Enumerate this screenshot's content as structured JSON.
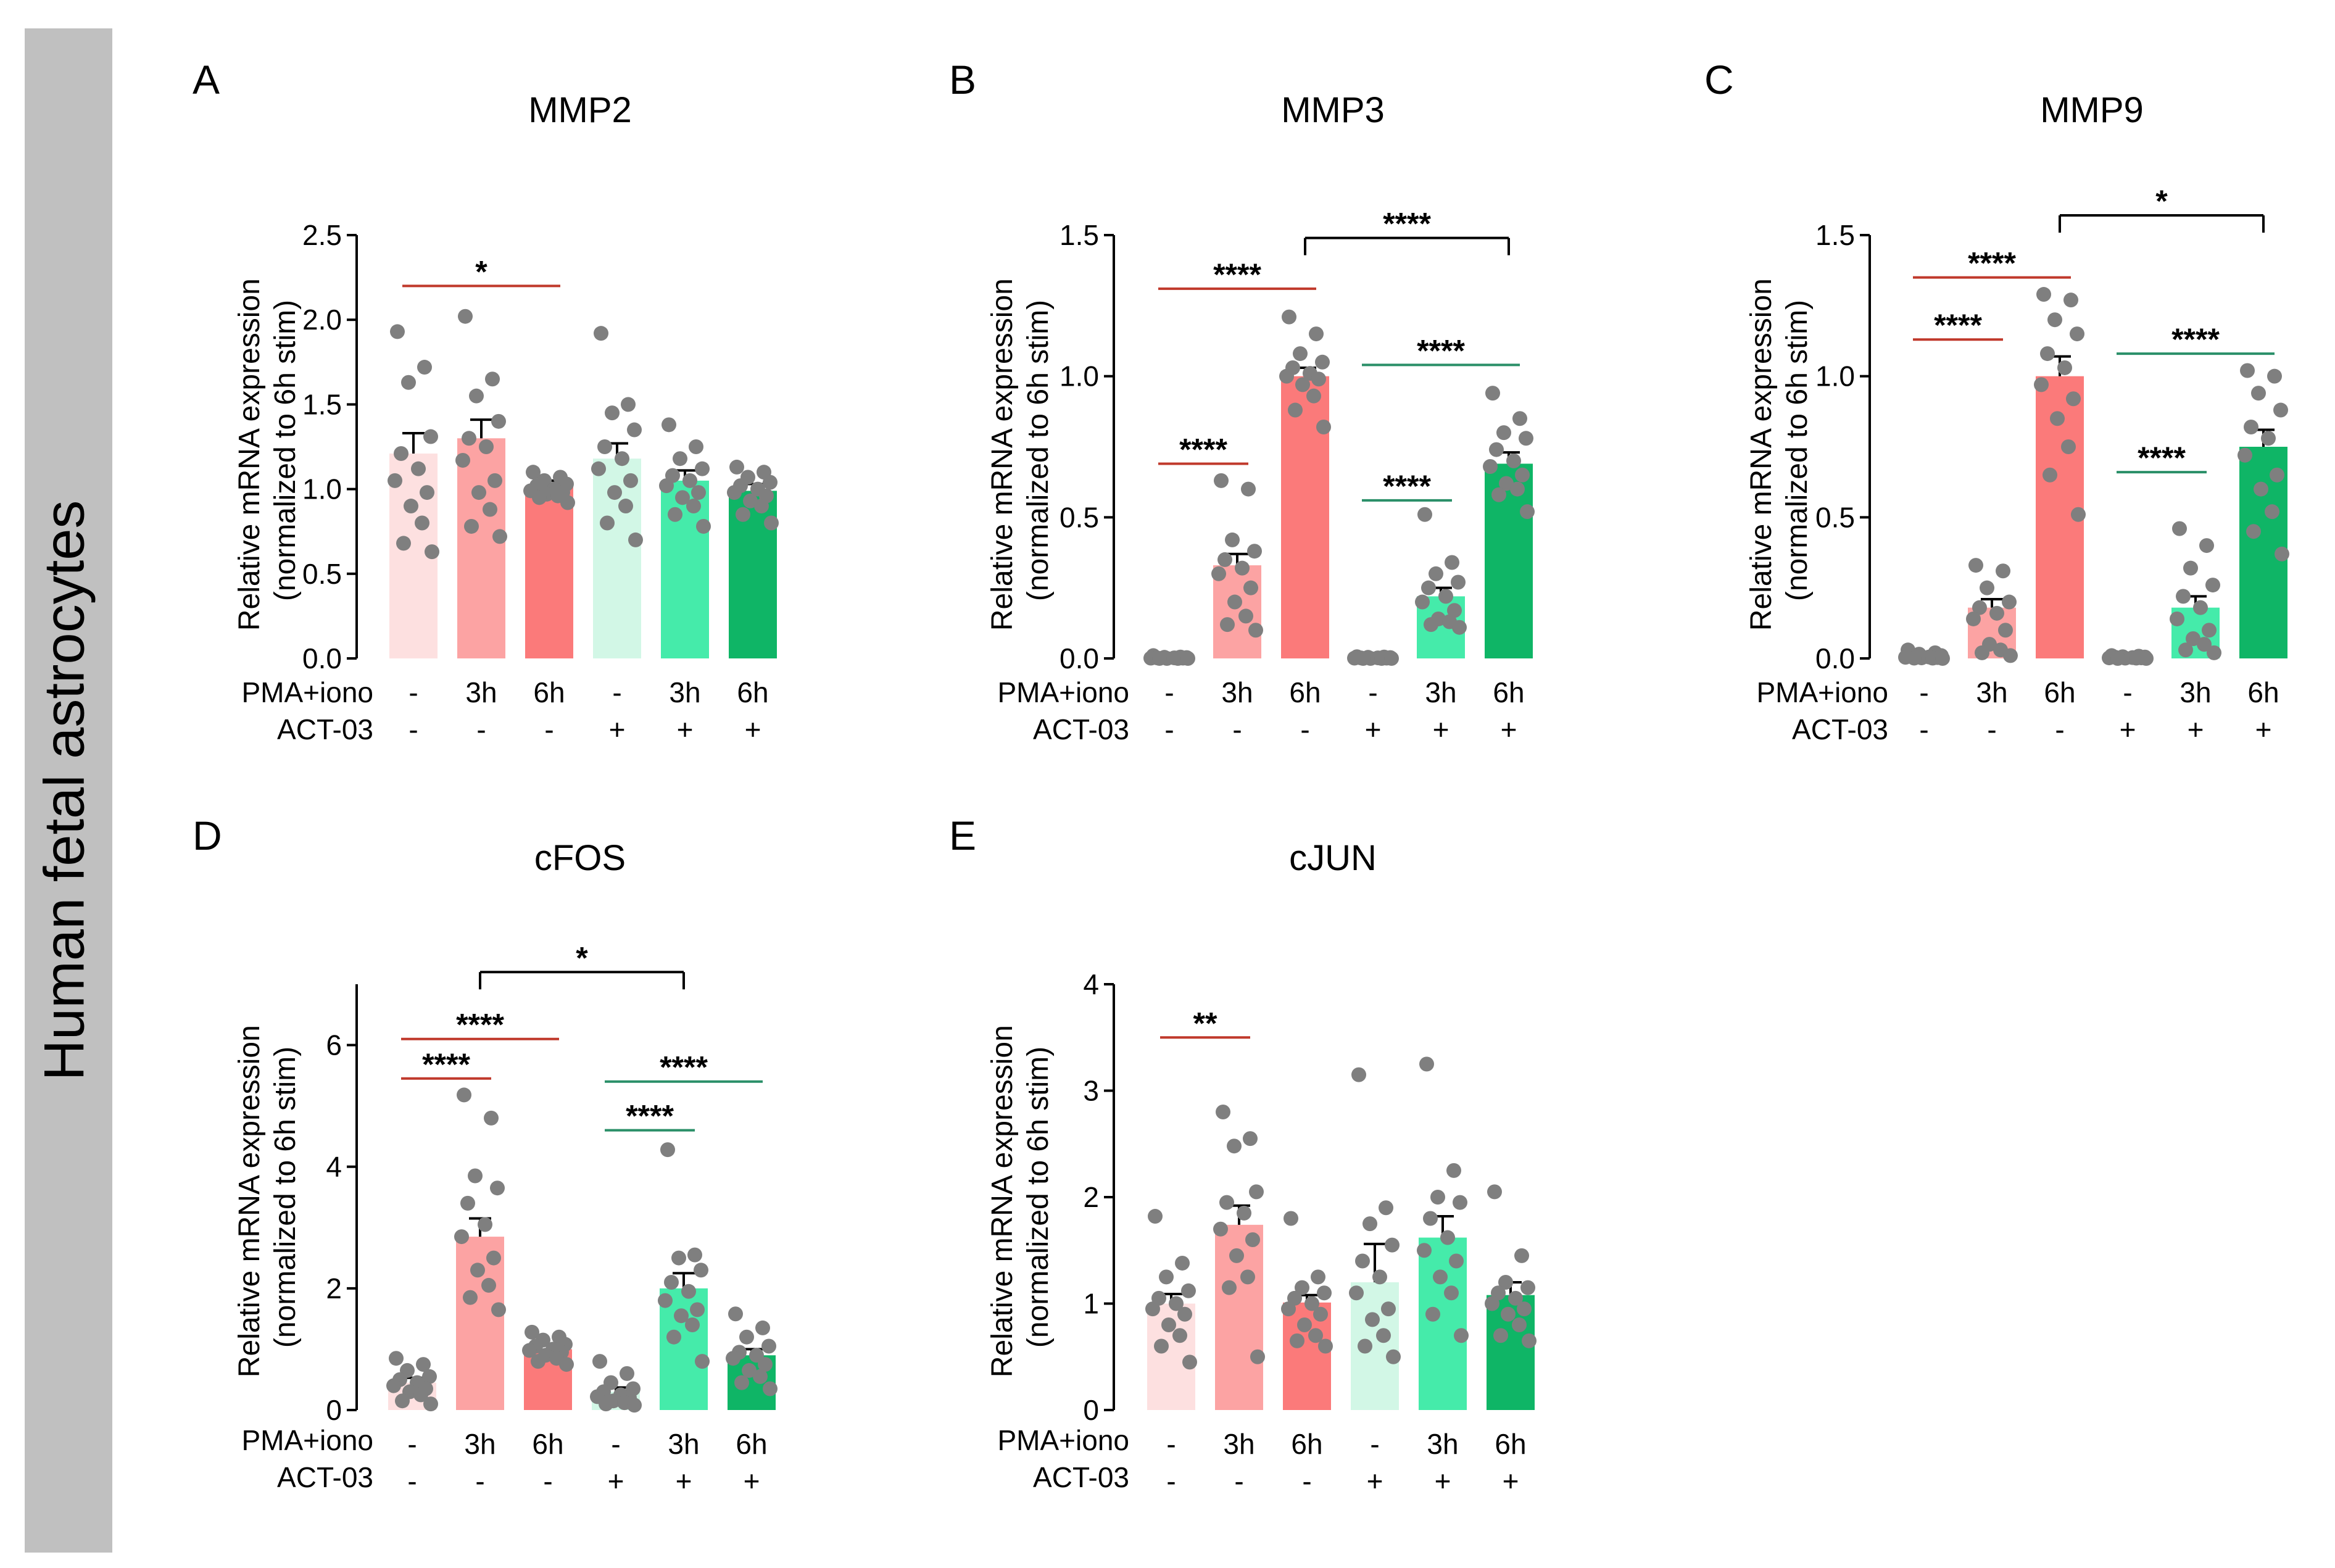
{
  "side_label": "Human fetal astrocytes",
  "y_axis_label_line1": "Relative mRNA expression",
  "y_axis_label_line2": "(normalized to 6h stim)",
  "row_labels": {
    "pma": "PMA+iono",
    "act": "ACT-03"
  },
  "conditions": {
    "pma": [
      "-",
      "3h",
      "6h",
      "-",
      "3h",
      "6h"
    ],
    "act": [
      "-",
      "-",
      "-",
      "+",
      "+",
      "+"
    ]
  },
  "colors": {
    "bars": [
      "#fde0e0",
      "#fca3a3",
      "#fb7a7a",
      "#d2f7e6",
      "#45ebaa",
      "#0fb566"
    ],
    "points": "#7f7f7f",
    "red_line": "#c0392b",
    "green_line": "#2a8f68",
    "black_line": "#000000",
    "side_band": "#c0c0c0"
  },
  "chart_data": [
    {
      "type": "bar",
      "panel": "A",
      "title": "MMP2",
      "ylim": [
        0,
        2.5
      ],
      "yticks": [
        0.0,
        0.5,
        1.0,
        1.5,
        2.0,
        2.5
      ],
      "ytick_labels": [
        "0.0",
        "0.5",
        "1.0",
        "1.5",
        "2.0",
        "2.5"
      ],
      "categories": [
        "- / -",
        "3h / -",
        "6h / -",
        "- / +",
        "3h / +",
        "6h / +"
      ],
      "values": [
        1.21,
        1.3,
        1.02,
        1.18,
        1.05,
        0.99
      ],
      "errors": [
        0.12,
        0.11,
        0.03,
        0.09,
        0.06,
        0.04
      ],
      "points": [
        [
          1.93,
          1.72,
          1.63,
          1.31,
          1.21,
          1.12,
          1.05,
          0.98,
          0.9,
          0.8,
          0.68,
          0.63
        ],
        [
          2.02,
          1.65,
          1.55,
          1.4,
          1.3,
          1.25,
          1.17,
          1.05,
          0.98,
          0.88,
          0.78,
          0.72
        ],
        [
          1.1,
          1.07,
          1.05,
          1.03,
          1.02,
          1.0,
          0.99,
          0.98,
          0.97,
          0.96,
          0.95,
          0.92
        ],
        [
          1.92,
          1.5,
          1.45,
          1.35,
          1.25,
          1.18,
          1.12,
          1.05,
          0.98,
          0.9,
          0.8,
          0.7
        ],
        [
          1.38,
          1.25,
          1.18,
          1.12,
          1.08,
          1.05,
          1.02,
          0.98,
          0.95,
          0.9,
          0.85,
          0.78
        ],
        [
          1.13,
          1.1,
          1.07,
          1.04,
          1.02,
          1.0,
          0.98,
          0.96,
          0.93,
          0.9,
          0.85,
          0.8
        ]
      ],
      "significance": [
        {
          "from": 0,
          "to": 2,
          "label": "*",
          "color": "red",
          "y": 2.2,
          "bracket": false
        }
      ]
    },
    {
      "type": "bar",
      "panel": "B",
      "title": "MMP3",
      "ylim": [
        0,
        1.5
      ],
      "yticks": [
        0.0,
        0.5,
        1.0,
        1.5
      ],
      "ytick_labels": [
        "0.0",
        "0.5",
        "1.0",
        "1.5"
      ],
      "categories": [
        "- / -",
        "3h / -",
        "6h / -",
        "- / +",
        "3h / +",
        "6h / +"
      ],
      "values": [
        0.0,
        0.33,
        1.0,
        0.0,
        0.22,
        0.69
      ],
      "errors": [
        0.0,
        0.04,
        0.03,
        0.0,
        0.03,
        0.04
      ],
      "points": [
        [
          0.01,
          0.005,
          0.004,
          0.003,
          0.002,
          0.002,
          0.001,
          0.001,
          0.0,
          0.0,
          0.0,
          0.0
        ],
        [
          0.63,
          0.6,
          0.42,
          0.38,
          0.35,
          0.32,
          0.3,
          0.25,
          0.2,
          0.15,
          0.12,
          0.1
        ],
        [
          1.21,
          1.15,
          1.08,
          1.05,
          1.03,
          1.01,
          1.0,
          0.99,
          0.97,
          0.93,
          0.88,
          0.82
        ],
        [
          0.006,
          0.005,
          0.004,
          0.003,
          0.002,
          0.002,
          0.001,
          0.001,
          0.0,
          0.0,
          0.0,
          0.0
        ],
        [
          0.51,
          0.34,
          0.3,
          0.27,
          0.25,
          0.22,
          0.2,
          0.17,
          0.14,
          0.13,
          0.12,
          0.11
        ],
        [
          0.94,
          0.85,
          0.8,
          0.78,
          0.74,
          0.7,
          0.68,
          0.65,
          0.62,
          0.6,
          0.58,
          0.52
        ]
      ],
      "significance": [
        {
          "from": 0,
          "to": 2,
          "label": "****",
          "color": "red",
          "y": 1.31,
          "bracket": false
        },
        {
          "from": 0,
          "to": 1,
          "label": "****",
          "color": "red",
          "y": 0.69,
          "bracket": false
        },
        {
          "from": 2,
          "to": 5,
          "label": "****",
          "color": "black",
          "y": 1.49,
          "bracket": true
        },
        {
          "from": 3,
          "to": 5,
          "label": "****",
          "color": "green",
          "y": 1.04,
          "bracket": false
        },
        {
          "from": 3,
          "to": 4,
          "label": "****",
          "color": "green",
          "y": 0.56,
          "bracket": false
        }
      ]
    },
    {
      "type": "bar",
      "panel": "C",
      "title": "MMP9",
      "ylim": [
        0,
        1.5
      ],
      "yticks": [
        0.0,
        0.5,
        1.0,
        1.5
      ],
      "ytick_labels": [
        "0.0",
        "0.5",
        "1.0",
        "1.5"
      ],
      "categories": [
        "- / -",
        "3h / -",
        "6h / -",
        "- / +",
        "3h / +",
        "6h / +"
      ],
      "values": [
        0.01,
        0.18,
        1.0,
        0.005,
        0.18,
        0.75
      ],
      "errors": [
        0.003,
        0.03,
        0.07,
        0.002,
        0.04,
        0.06
      ],
      "points": [
        [
          0.03,
          0.02,
          0.015,
          0.01,
          0.008,
          0.005,
          0.004,
          0.003,
          0.002,
          0.001,
          0.001,
          0.0
        ],
        [
          0.33,
          0.31,
          0.25,
          0.2,
          0.18,
          0.16,
          0.14,
          0.1,
          0.05,
          0.03,
          0.02,
          0.01
        ],
        [
          1.29,
          1.27,
          1.2,
          1.15,
          1.08,
          1.03,
          0.97,
          0.92,
          0.85,
          0.75,
          0.65,
          0.51
        ],
        [
          0.01,
          0.008,
          0.006,
          0.005,
          0.004,
          0.003,
          0.002,
          0.002,
          0.001,
          0.001,
          0.0,
          0.0
        ],
        [
          0.46,
          0.4,
          0.32,
          0.26,
          0.22,
          0.18,
          0.14,
          0.1,
          0.07,
          0.05,
          0.03,
          0.02
        ],
        [
          1.02,
          1.0,
          0.94,
          0.88,
          0.82,
          0.78,
          0.72,
          0.65,
          0.6,
          0.52,
          0.45,
          0.37
        ]
      ],
      "significance": [
        {
          "from": 0,
          "to": 2,
          "label": "****",
          "color": "red",
          "y": 1.35,
          "bracket": false
        },
        {
          "from": 0,
          "to": 1,
          "label": "****",
          "color": "red",
          "y": 1.13,
          "bracket": false
        },
        {
          "from": 2,
          "to": 5,
          "label": "*",
          "color": "black",
          "y": 1.57,
          "bracket": true
        },
        {
          "from": 3,
          "to": 5,
          "label": "****",
          "color": "green",
          "y": 1.08,
          "bracket": false
        },
        {
          "from": 3,
          "to": 4,
          "label": "****",
          "color": "green",
          "y": 0.66,
          "bracket": false
        }
      ]
    },
    {
      "type": "bar",
      "panel": "D",
      "title": "cFOS",
      "ylim": [
        0,
        7
      ],
      "yticks": [
        0,
        2,
        4,
        6
      ],
      "ytick_labels": [
        "0",
        "2",
        "4",
        "6"
      ],
      "categories": [
        "- / -",
        "3h / -",
        "6h / -",
        "- / +",
        "3h / +",
        "6h / +"
      ],
      "values": [
        0.45,
        2.85,
        1.0,
        0.3,
        2.0,
        0.9
      ],
      "errors": [
        0.08,
        0.3,
        0.06,
        0.07,
        0.25,
        0.1
      ],
      "points": [
        [
          0.85,
          0.75,
          0.65,
          0.55,
          0.5,
          0.45,
          0.4,
          0.35,
          0.3,
          0.25,
          0.15,
          0.1
        ],
        [
          5.18,
          4.8,
          3.85,
          3.65,
          3.4,
          3.05,
          2.85,
          2.5,
          2.3,
          2.05,
          1.85,
          1.65
        ],
        [
          1.28,
          1.2,
          1.15,
          1.08,
          1.05,
          1.0,
          0.98,
          0.95,
          0.9,
          0.85,
          0.8,
          0.75
        ],
        [
          0.8,
          0.6,
          0.45,
          0.35,
          0.3,
          0.25,
          0.22,
          0.2,
          0.15,
          0.12,
          0.1,
          0.08
        ],
        [
          4.28,
          2.55,
          2.5,
          2.3,
          2.1,
          1.95,
          1.8,
          1.65,
          1.55,
          1.4,
          1.2,
          0.8
        ],
        [
          1.58,
          1.35,
          1.2,
          1.05,
          0.95,
          0.9,
          0.85,
          0.75,
          0.65,
          0.55,
          0.45,
          0.35
        ]
      ],
      "significance": [
        {
          "from": 1,
          "to": 4,
          "label": "*",
          "color": "black",
          "y": 7.2,
          "bracket": true
        },
        {
          "from": 0,
          "to": 2,
          "label": "****",
          "color": "red",
          "y": 6.1,
          "bracket": false
        },
        {
          "from": 0,
          "to": 1,
          "label": "****",
          "color": "red",
          "y": 5.45,
          "bracket": false
        },
        {
          "from": 3,
          "to": 5,
          "label": "****",
          "color": "green",
          "y": 5.4,
          "bracket": false
        },
        {
          "from": 3,
          "to": 4,
          "label": "****",
          "color": "green",
          "y": 4.6,
          "bracket": false
        }
      ]
    },
    {
      "type": "bar",
      "panel": "E",
      "title": "cJUN",
      "ylim": [
        0,
        4
      ],
      "yticks": [
        0,
        1,
        2,
        3,
        4
      ],
      "ytick_labels": [
        "0",
        "1",
        "2",
        "3",
        "4"
      ],
      "categories": [
        "- / -",
        "3h / -",
        "6h / -",
        "- / +",
        "3h / +",
        "6h / +"
      ],
      "values": [
        1.0,
        1.74,
        1.01,
        1.2,
        1.62,
        1.08
      ],
      "errors": [
        0.09,
        0.18,
        0.07,
        0.36,
        0.2,
        0.12
      ],
      "points": [
        [
          1.82,
          1.38,
          1.25,
          1.12,
          1.05,
          1.0,
          0.95,
          0.9,
          0.8,
          0.7,
          0.6,
          0.45
        ],
        [
          2.8,
          2.55,
          2.48,
          2.05,
          1.95,
          1.85,
          1.7,
          1.6,
          1.45,
          1.25,
          1.15,
          0.5
        ],
        [
          1.8,
          1.25,
          1.15,
          1.1,
          1.05,
          1.0,
          0.95,
          0.9,
          0.8,
          0.7,
          0.65,
          0.6
        ],
        [
          3.15,
          1.9,
          1.75,
          1.55,
          1.4,
          1.25,
          1.1,
          0.95,
          0.85,
          0.7,
          0.6,
          0.5
        ],
        [
          3.25,
          2.25,
          2.0,
          1.95,
          1.8,
          1.62,
          1.5,
          1.4,
          1.25,
          1.1,
          0.9,
          0.7
        ],
        [
          2.05,
          1.45,
          1.2,
          1.15,
          1.1,
          1.05,
          1.0,
          0.95,
          0.9,
          0.8,
          0.7,
          0.65
        ]
      ],
      "significance": [
        {
          "from": 0,
          "to": 1,
          "label": "**",
          "color": "red",
          "y": 3.5,
          "bracket": false
        }
      ]
    }
  ]
}
